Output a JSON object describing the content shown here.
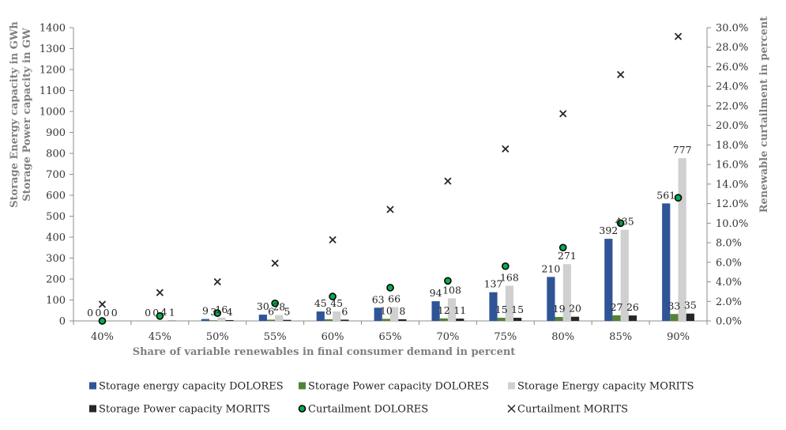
{
  "chart_data": {
    "type": "bar",
    "categories": [
      "40%",
      "45%",
      "50%",
      "55%",
      "60%",
      "65%",
      "70%",
      "75%",
      "80%",
      "85%",
      "90%"
    ],
    "xlabel": "Share of variable renewables in final consumer demand in percent",
    "ylabel_lines": [
      "Storage Energy capacity in GWh",
      "Storage Power capacity in GW"
    ],
    "y2label": "Renewable curtailment in percent",
    "ylim": [
      0,
      1400
    ],
    "y_ticks": [
      "0",
      "100",
      "200",
      "300",
      "400",
      "500",
      "600",
      "700",
      "800",
      "900",
      "1000",
      "1100",
      "1200",
      "1300",
      "1400"
    ],
    "y2lim": [
      0,
      30
    ],
    "y2_ticks": [
      "0.0%",
      "2.0%",
      "4.0%",
      "6.0%",
      "8.0%",
      "10.0%",
      "12.0%",
      "14.0%",
      "16.0%",
      "18.0%",
      "20.0%",
      "22.0%",
      "24.0%",
      "26.0%",
      "28.0%",
      "30.0%"
    ],
    "grid": false,
    "legend_position": "bottom",
    "series": [
      {
        "name": "Storage energy capacity DOLORES",
        "kind": "bar",
        "axis": "left",
        "color": "#2f5597",
        "values": [
          0,
          0,
          9,
          30,
          45,
          63,
          94,
          137,
          210,
          392,
          561
        ],
        "labels": [
          "0",
          "0",
          "9",
          "30",
          "45",
          "63",
          "94",
          "137",
          "210",
          "392",
          "561"
        ]
      },
      {
        "name": "Storage Power capacity DOLORES",
        "kind": "bar",
        "axis": "left",
        "color": "#548235",
        "values": [
          0,
          0,
          3,
          6,
          8,
          10,
          12,
          15,
          19,
          27,
          33
        ],
        "labels": [
          "0",
          "0",
          "3",
          "6",
          "8",
          "10",
          "12",
          "15",
          "19",
          "27",
          "33"
        ]
      },
      {
        "name": "Storage Energy capacity MORITS",
        "kind": "bar",
        "axis": "left",
        "color": "#d0d0d0",
        "values": [
          0,
          4,
          16,
          28,
          45,
          66,
          108,
          168,
          271,
          435,
          777
        ],
        "labels": [
          "0",
          "4",
          "16",
          "28",
          "45",
          "66",
          "108",
          "168",
          "271",
          "435",
          "777"
        ]
      },
      {
        "name": "Storage Power capacity MORITS",
        "kind": "bar",
        "axis": "left",
        "color": "#262626",
        "values": [
          0,
          1,
          4,
          5,
          6,
          8,
          11,
          15,
          20,
          26,
          35
        ],
        "labels": [
          "0",
          "1",
          "4",
          "5",
          "6",
          "8",
          "11",
          "15",
          "20",
          "26",
          "35"
        ]
      },
      {
        "name": "Curtailment DOLORES",
        "kind": "marker-dot",
        "axis": "right",
        "color": "#00b050",
        "values": [
          0.0,
          0.5,
          0.8,
          1.8,
          2.5,
          3.4,
          4.1,
          5.6,
          7.5,
          10.0,
          12.6
        ]
      },
      {
        "name": "Curtailment MORITS",
        "kind": "marker-x",
        "axis": "right",
        "color": "#262626",
        "values": [
          1.7,
          2.9,
          4.0,
          5.9,
          8.3,
          11.4,
          14.3,
          17.6,
          21.2,
          25.2,
          29.1
        ]
      }
    ]
  }
}
